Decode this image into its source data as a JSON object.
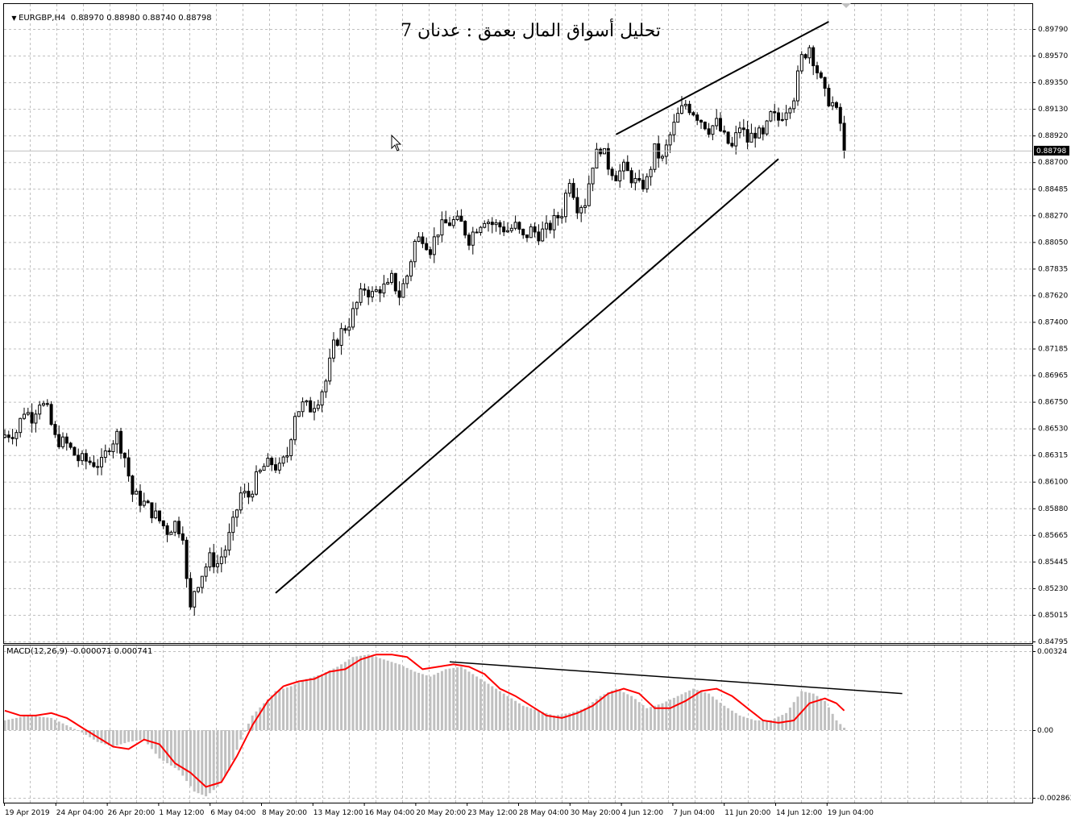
{
  "header": {
    "symbol_line": "EURGBP,H4  0.88970 0.88980 0.88740 0.88798",
    "overlay_title": "تحليل أسواق المال بعمق : عدنان 7",
    "macd_line": "MACD(12,26,9) -0.000071 0.000741",
    "current_price_label": "0.88798"
  },
  "colors": {
    "candle": "#000000",
    "grid": "#c0c0c0",
    "histogram": "#c0c0c0",
    "signal": "#ff0000",
    "trendline": "#000000",
    "price_line": "#c0c0c0"
  },
  "chart_data": [
    {
      "type": "candlestick",
      "symbol": "EURGBP",
      "timeframe": "H4",
      "y_ticks": [
        "0.89790",
        "0.89570",
        "0.89350",
        "0.89130",
        "0.88920",
        "0.88700",
        "0.88485",
        "0.88270",
        "0.88050",
        "0.87835",
        "0.87620",
        "0.87400",
        "0.87185",
        "0.86965",
        "0.86750",
        "0.86530",
        "0.86315",
        "0.86100",
        "0.85880",
        "0.85665",
        "0.85445",
        "0.85230",
        "0.85015",
        "0.84795"
      ],
      "ylim": [
        0.84795,
        0.899
      ],
      "x_ticks": [
        "19 Apr 2019",
        "24 Apr 04:00",
        "26 Apr 20:00",
        "1 May 12:00",
        "6 May 04:00",
        "8 May 20:00",
        "13 May 12:00",
        "16 May 04:00",
        "20 May 20:00",
        "23 May 12:00",
        "28 May 04:00",
        "30 May 20:00",
        "4 Jun 12:00",
        "7 Jun 04:00",
        "11 Jun 20:00",
        "14 Jun 12:00",
        "19 Jun 04:00"
      ],
      "current_price": 0.88798,
      "close_path": [
        [
          0,
          0.8648
        ],
        [
          3,
          0.8651
        ],
        [
          5,
          0.8668
        ],
        [
          7,
          0.8663
        ],
        [
          9,
          0.8676
        ],
        [
          11,
          0.8667
        ],
        [
          13,
          0.8645
        ],
        [
          16,
          0.864
        ],
        [
          19,
          0.8628
        ],
        [
          22,
          0.8626
        ],
        [
          25,
          0.8624
        ],
        [
          27,
          0.864
        ],
        [
          29,
          0.8648
        ],
        [
          31,
          0.863
        ],
        [
          33,
          0.86
        ],
        [
          36,
          0.8592
        ],
        [
          39,
          0.8582
        ],
        [
          42,
          0.857
        ],
        [
          44,
          0.8576
        ],
        [
          46,
          0.8568
        ],
        [
          47,
          0.8528
        ],
        [
          48,
          0.8505
        ],
        [
          49,
          0.8522
        ],
        [
          51,
          0.8535
        ],
        [
          53,
          0.8547
        ],
        [
          55,
          0.8543
        ],
        [
          57,
          0.8555
        ],
        [
          59,
          0.8575
        ],
        [
          61,
          0.86
        ],
        [
          63,
          0.8598
        ],
        [
          65,
          0.8612
        ],
        [
          67,
          0.8622
        ],
        [
          69,
          0.8625
        ],
        [
          71,
          0.862
        ],
        [
          73,
          0.8632
        ],
        [
          75,
          0.8666
        ],
        [
          77,
          0.8672
        ],
        [
          79,
          0.867
        ],
        [
          81,
          0.8678
        ],
        [
          83,
          0.8692
        ],
        [
          85,
          0.872
        ],
        [
          87,
          0.8732
        ],
        [
          89,
          0.874
        ],
        [
          91,
          0.8755
        ],
        [
          93,
          0.8768
        ],
        [
          95,
          0.8762
        ],
        [
          97,
          0.8768
        ],
        [
          99,
          0.8768
        ],
        [
          100,
          0.8775
        ],
        [
          102,
          0.8762
        ],
        [
          104,
          0.8778
        ],
        [
          106,
          0.8805
        ],
        [
          108,
          0.881
        ],
        [
          110,
          0.88
        ],
        [
          112,
          0.8815
        ],
        [
          114,
          0.882
        ],
        [
          116,
          0.8822
        ],
        [
          118,
          0.882
        ],
        [
          120,
          0.8808
        ],
        [
          122,
          0.8818
        ],
        [
          124,
          0.8825
        ],
        [
          126,
          0.882
        ],
        [
          128,
          0.8818
        ],
        [
          130,
          0.8815
        ],
        [
          132,
          0.8818
        ],
        [
          134,
          0.8808
        ],
        [
          136,
          0.8815
        ],
        [
          138,
          0.8812
        ],
        [
          140,
          0.8815
        ],
        [
          142,
          0.8822
        ],
        [
          144,
          0.883
        ],
        [
          146,
          0.8858
        ],
        [
          148,
          0.8835
        ],
        [
          150,
          0.8838
        ],
        [
          152,
          0.887
        ],
        [
          154,
          0.8883
        ],
        [
          156,
          0.8868
        ],
        [
          158,
          0.886
        ],
        [
          160,
          0.8865
        ],
        [
          162,
          0.8858
        ],
        [
          164,
          0.885
        ],
        [
          166,
          0.8855
        ],
        [
          168,
          0.888
        ],
        [
          170,
          0.8872
        ],
        [
          172,
          0.8892
        ],
        [
          174,
          0.8908
        ],
        [
          176,
          0.8918
        ],
        [
          178,
          0.8912
        ],
        [
          180,
          0.8905
        ],
        [
          182,
          0.8898
        ],
        [
          184,
          0.8902
        ],
        [
          186,
          0.889
        ],
        [
          188,
          0.8882
        ],
        [
          190,
          0.89
        ],
        [
          192,
          0.8888
        ],
        [
          194,
          0.8895
        ],
        [
          196,
          0.889
        ],
        [
          198,
          0.8908
        ],
        [
          200,
          0.8905
        ],
        [
          202,
          0.8915
        ],
        [
          204,
          0.8925
        ],
        [
          206,
          0.8955
        ],
        [
          208,
          0.8965
        ],
        [
          210,
          0.8945
        ],
        [
          212,
          0.8925
        ],
        [
          214,
          0.8918
        ],
        [
          216,
          0.8902
        ],
        [
          217,
          0.888
        ]
      ],
      "trendlines": [
        {
          "x1": 70,
          "y1": 0.8519,
          "x2": 200,
          "y2": 0.8873
        },
        {
          "x1": 158,
          "y1": 0.8893,
          "x2": 213,
          "y2": 0.8985
        }
      ]
    },
    {
      "type": "macd",
      "title": "MACD(12,26,9) -0.000071 0.000741",
      "y_ticks": [
        "0.00324",
        "0.00",
        "-0.002863"
      ],
      "ylim": [
        -0.002863,
        0.00324
      ],
      "histogram_path": [
        [
          0,
          0.0004
        ],
        [
          6,
          0.0006
        ],
        [
          12,
          0.0005
        ],
        [
          16,
          0.0002
        ],
        [
          20,
          -0.0001
        ],
        [
          24,
          -0.0005
        ],
        [
          28,
          -0.0007
        ],
        [
          32,
          -0.0005
        ],
        [
          36,
          -0.0004
        ],
        [
          40,
          -0.0012
        ],
        [
          45,
          -0.0017
        ],
        [
          49,
          -0.0026
        ],
        [
          52,
          -0.0028
        ],
        [
          55,
          -0.0024
        ],
        [
          58,
          -0.0017
        ],
        [
          61,
          -0.0004
        ],
        [
          64,
          0.0006
        ],
        [
          67,
          0.0011
        ],
        [
          70,
          0.0016
        ],
        [
          74,
          0.0018
        ],
        [
          78,
          0.0021
        ],
        [
          82,
          0.0023
        ],
        [
          86,
          0.0026
        ],
        [
          90,
          0.003
        ],
        [
          94,
          0.0031
        ],
        [
          98,
          0.0029
        ],
        [
          102,
          0.0027
        ],
        [
          106,
          0.0024
        ],
        [
          110,
          0.0022
        ],
        [
          114,
          0.0025
        ],
        [
          118,
          0.0026
        ],
        [
          122,
          0.0022
        ],
        [
          126,
          0.0018
        ],
        [
          130,
          0.0014
        ],
        [
          134,
          0.001
        ],
        [
          138,
          0.0008
        ],
        [
          142,
          0.0006
        ],
        [
          146,
          0.0007
        ],
        [
          150,
          0.0009
        ],
        [
          154,
          0.0014
        ],
        [
          158,
          0.0017
        ],
        [
          162,
          0.0014
        ],
        [
          166,
          0.0009
        ],
        [
          170,
          0.0011
        ],
        [
          174,
          0.0014
        ],
        [
          178,
          0.0017
        ],
        [
          182,
          0.0015
        ],
        [
          186,
          0.001
        ],
        [
          190,
          0.0006
        ],
        [
          194,
          0.0004
        ],
        [
          198,
          0.0004
        ],
        [
          202,
          0.0007
        ],
        [
          206,
          0.0016
        ],
        [
          209,
          0.0015
        ],
        [
          212,
          0.0012
        ],
        [
          215,
          0.0004
        ],
        [
          217,
          0.0001
        ]
      ],
      "signal_path": [
        [
          0,
          0.0008
        ],
        [
          4,
          0.0006
        ],
        [
          8,
          0.0006
        ],
        [
          12,
          0.0007
        ],
        [
          16,
          0.0005
        ],
        [
          20,
          0.0001
        ],
        [
          24,
          -0.0003
        ],
        [
          28,
          -0.0007
        ],
        [
          32,
          -0.0008
        ],
        [
          36,
          -0.0004
        ],
        [
          40,
          -0.0006
        ],
        [
          44,
          -0.0014
        ],
        [
          48,
          -0.0018
        ],
        [
          52,
          -0.0024
        ],
        [
          56,
          -0.0022
        ],
        [
          60,
          -0.0011
        ],
        [
          64,
          0.0002
        ],
        [
          68,
          0.0012
        ],
        [
          72,
          0.0018
        ],
        [
          76,
          0.002
        ],
        [
          80,
          0.0021
        ],
        [
          84,
          0.0024
        ],
        [
          88,
          0.0025
        ],
        [
          92,
          0.0029
        ],
        [
          96,
          0.0031
        ],
        [
          100,
          0.0031
        ],
        [
          104,
          0.003
        ],
        [
          108,
          0.0025
        ],
        [
          112,
          0.0026
        ],
        [
          116,
          0.0027
        ],
        [
          120,
          0.0026
        ],
        [
          124,
          0.0023
        ],
        [
          128,
          0.0017
        ],
        [
          132,
          0.0014
        ],
        [
          136,
          0.001
        ],
        [
          140,
          0.0006
        ],
        [
          144,
          0.0005
        ],
        [
          148,
          0.0007
        ],
        [
          152,
          0.001
        ],
        [
          156,
          0.0015
        ],
        [
          160,
          0.0017
        ],
        [
          164,
          0.0015
        ],
        [
          168,
          0.0009
        ],
        [
          172,
          0.0009
        ],
        [
          176,
          0.0012
        ],
        [
          180,
          0.0016
        ],
        [
          184,
          0.0017
        ],
        [
          188,
          0.0014
        ],
        [
          192,
          0.0009
        ],
        [
          196,
          0.0004
        ],
        [
          200,
          0.0003
        ],
        [
          204,
          0.0004
        ],
        [
          208,
          0.0011
        ],
        [
          212,
          0.0013
        ],
        [
          215,
          0.0011
        ],
        [
          217,
          0.0008
        ]
      ],
      "trendline": {
        "x1": 115,
        "y1": 0.0028,
        "x2": 232,
        "y2": 0.0015
      }
    }
  ]
}
